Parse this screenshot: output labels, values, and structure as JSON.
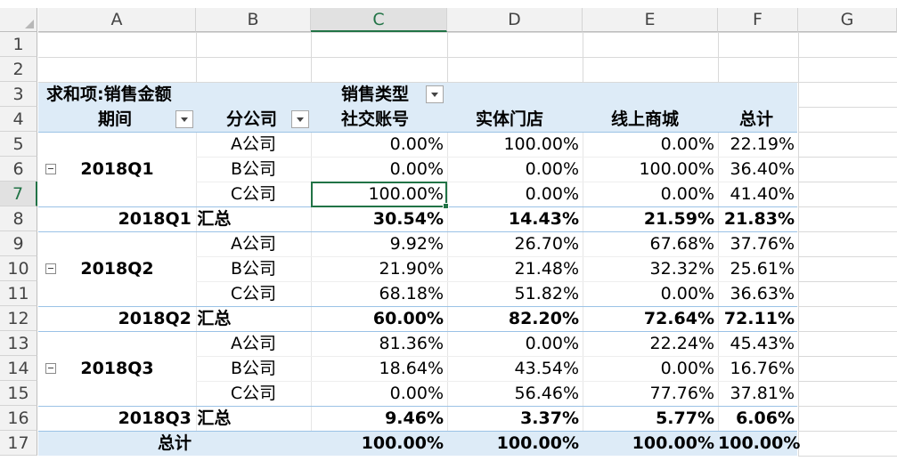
{
  "columns": [
    "A",
    "B",
    "C",
    "D",
    "E",
    "F",
    "G"
  ],
  "rows": [
    "1",
    "2",
    "3",
    "4",
    "5",
    "6",
    "7",
    "8",
    "9",
    "10",
    "11",
    "12",
    "13",
    "14",
    "15",
    "16",
    "17"
  ],
  "pivot": {
    "value_label": "求和项:销售金额",
    "col_field": "销售类型",
    "row_field1": "期间",
    "row_field2": "分公司",
    "col_headers": [
      "社交账号",
      "实体门店",
      "线上商城",
      "总计"
    ],
    "groups": [
      {
        "period": "2018Q1",
        "subtotal_label": "2018Q1 汇总",
        "rows": [
          {
            "company": "A公司",
            "values": [
              "0.00%",
              "100.00%",
              "0.00%",
              "22.19%"
            ]
          },
          {
            "company": "B公司",
            "values": [
              "0.00%",
              "0.00%",
              "100.00%",
              "36.40%"
            ]
          },
          {
            "company": "C公司",
            "values": [
              "100.00%",
              "0.00%",
              "0.00%",
              "41.40%"
            ]
          }
        ],
        "subtotal": [
          "30.54%",
          "14.43%",
          "21.59%",
          "21.83%"
        ]
      },
      {
        "period": "2018Q2",
        "subtotal_label": "2018Q2 汇总",
        "rows": [
          {
            "company": "A公司",
            "values": [
              "9.92%",
              "26.70%",
              "67.68%",
              "37.76%"
            ]
          },
          {
            "company": "B公司",
            "values": [
              "21.90%",
              "21.48%",
              "32.32%",
              "25.61%"
            ]
          },
          {
            "company": "C公司",
            "values": [
              "68.18%",
              "51.82%",
              "0.00%",
              "36.63%"
            ]
          }
        ],
        "subtotal": [
          "60.00%",
          "82.20%",
          "72.64%",
          "72.11%"
        ]
      },
      {
        "period": "2018Q3",
        "subtotal_label": "2018Q3 汇总",
        "rows": [
          {
            "company": "A公司",
            "values": [
              "81.36%",
              "0.00%",
              "22.24%",
              "45.43%"
            ]
          },
          {
            "company": "B公司",
            "values": [
              "18.64%",
              "43.54%",
              "0.00%",
              "16.76%"
            ]
          },
          {
            "company": "C公司",
            "values": [
              "0.00%",
              "56.46%",
              "77.76%",
              "37.81%"
            ]
          }
        ],
        "subtotal": [
          "9.46%",
          "3.37%",
          "5.77%",
          "6.06%"
        ]
      }
    ],
    "grand_total_label": "总计",
    "grand_total": [
      "100.00%",
      "100.00%",
      "100.00%",
      "100.00%"
    ]
  }
}
